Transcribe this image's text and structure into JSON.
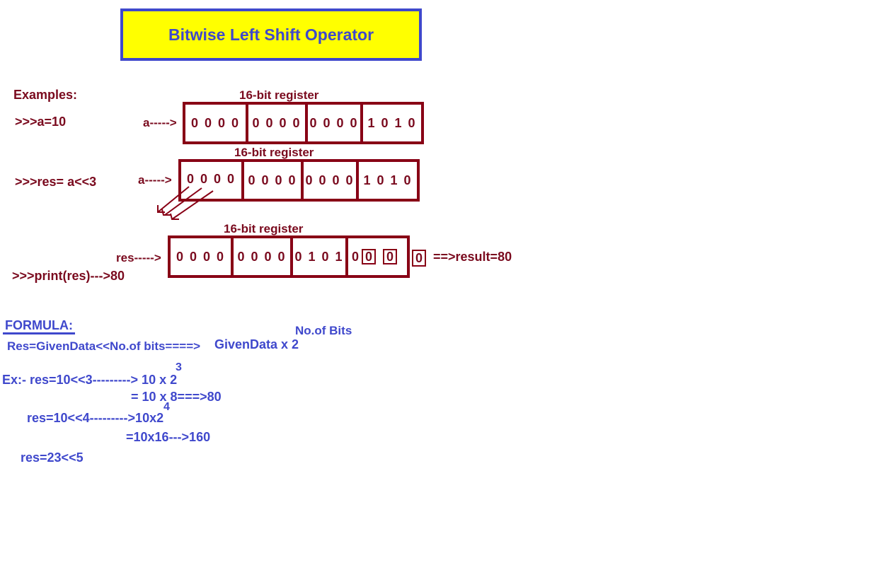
{
  "title": "Bitwise Left Shift Operator",
  "examples_heading": "Examples:",
  "code_a": ">>>a=10",
  "code_res": ">>>res= a<<3",
  "code_print": ">>>print(res)--->80",
  "register_label": "16-bit register",
  "pointer_a": "a----->",
  "pointer_res": "res----->",
  "register1": [
    "0 0 0 0",
    "0 0 0 0",
    "0 0 0 0",
    "1 0 1 0"
  ],
  "register2": [
    "0 0 0 0",
    "0 0 0 0",
    "0 0 0 0",
    "1 0 1 0"
  ],
  "register3": {
    "cells": [
      "0 0 0 0",
      "0 0 0 0",
      "0 1 0 1"
    ],
    "last_plain": "0",
    "last_boxed": [
      "0",
      "0"
    ]
  },
  "overflow_bit": "0",
  "result_text": "==>result=80",
  "formula": {
    "heading": "FORMULA:",
    "line": "Res=GivenData<<No.of bits====>",
    "rhs": "GivenData x 2",
    "exponent": "No.of Bits"
  },
  "examples": {
    "ex1_line": "Ex:- res=10<<3---------> 10 x 2",
    "ex1_exp": "3",
    "ex1_result": "= 10 x 8===>80",
    "ex2_line": "res=10<<4--------->10x2",
    "ex2_exp": "4",
    "ex2_result": "=10x16--->160",
    "ex3_line": "res=23<<5"
  },
  "colors": {
    "dark_red": "#880015",
    "blue": "#3f48cc",
    "title_bg": "#ffff00"
  }
}
